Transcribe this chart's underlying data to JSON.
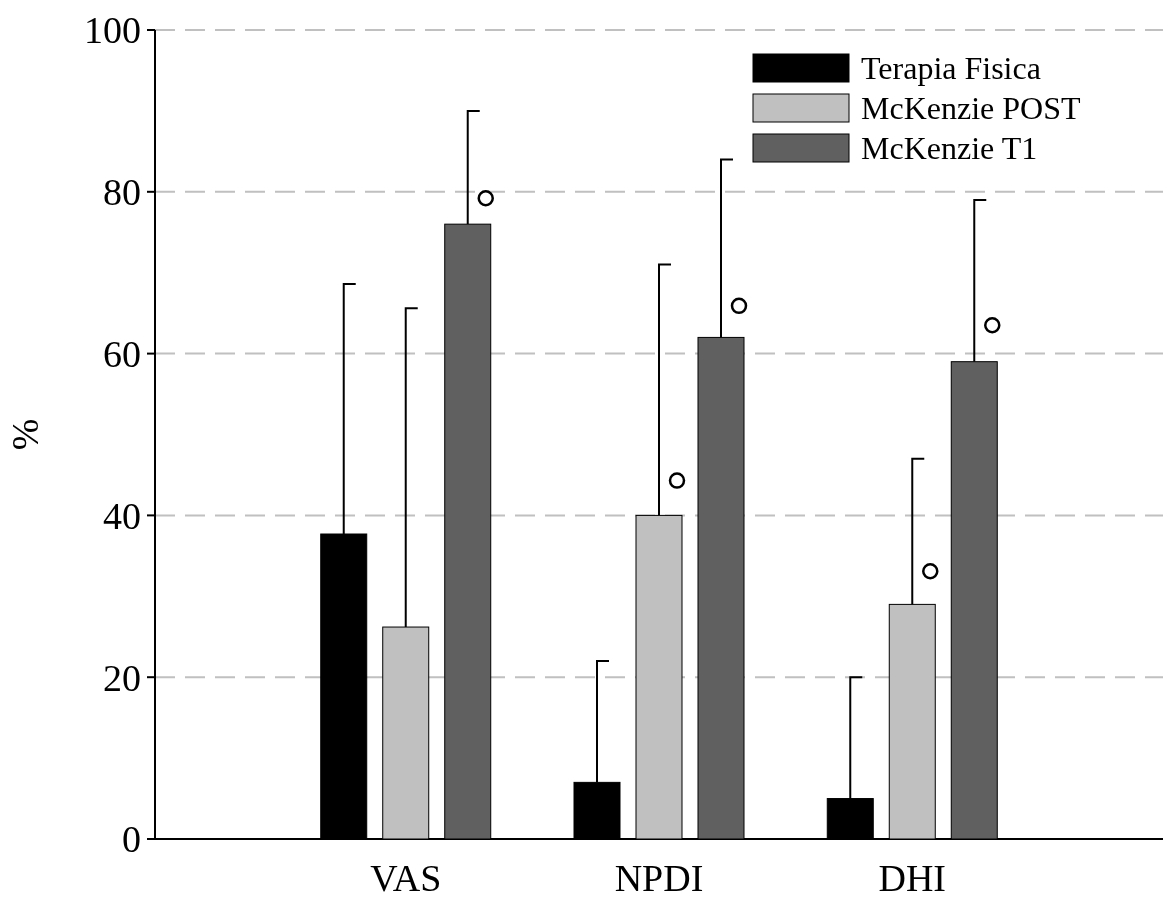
{
  "chart_data": {
    "type": "bar",
    "ylabel": "%",
    "categories": [
      "VAS",
      "NPDI",
      "DHI"
    ],
    "ylim": [
      0,
      100
    ],
    "yticks": [
      0,
      20,
      40,
      60,
      80,
      100
    ],
    "grid": "y",
    "legend": "top right",
    "series": [
      {
        "name": "Terapia Fisica",
        "color": "#000000",
        "values": [
          37.7,
          7,
          5
        ],
        "errors": [
          [
            37.7,
            68.6
          ],
          [
            7,
            22
          ],
          [
            5,
            20
          ]
        ]
      },
      {
        "name": "McKenzie POST",
        "color": "#c0c0c0",
        "values": [
          26.2,
          40,
          29
        ],
        "errors": [
          [
            26.2,
            65.6
          ],
          [
            40,
            71
          ],
          [
            29,
            47
          ]
        ]
      },
      {
        "name": "McKenzie T1",
        "color": "#606060",
        "values": [
          76,
          62,
          59
        ],
        "errors": [
          [
            76,
            90
          ],
          [
            62,
            84
          ],
          [
            59,
            79
          ]
        ]
      },
      {
        "type": "scatter",
        "color": "#000000",
        "marker": "circle",
        "x": [
          "VAS",
          "NPDI",
          "DHI"
        ],
        "values": [
          null,
          44.3,
          33.1
        ]
      },
      {
        "type": "scatter",
        "color": "#000000",
        "marker": "circle",
        "x": [
          "VAS",
          "NPDI",
          "DHI"
        ],
        "values": [
          79.2,
          65.9,
          63.5
        ]
      }
    ]
  }
}
